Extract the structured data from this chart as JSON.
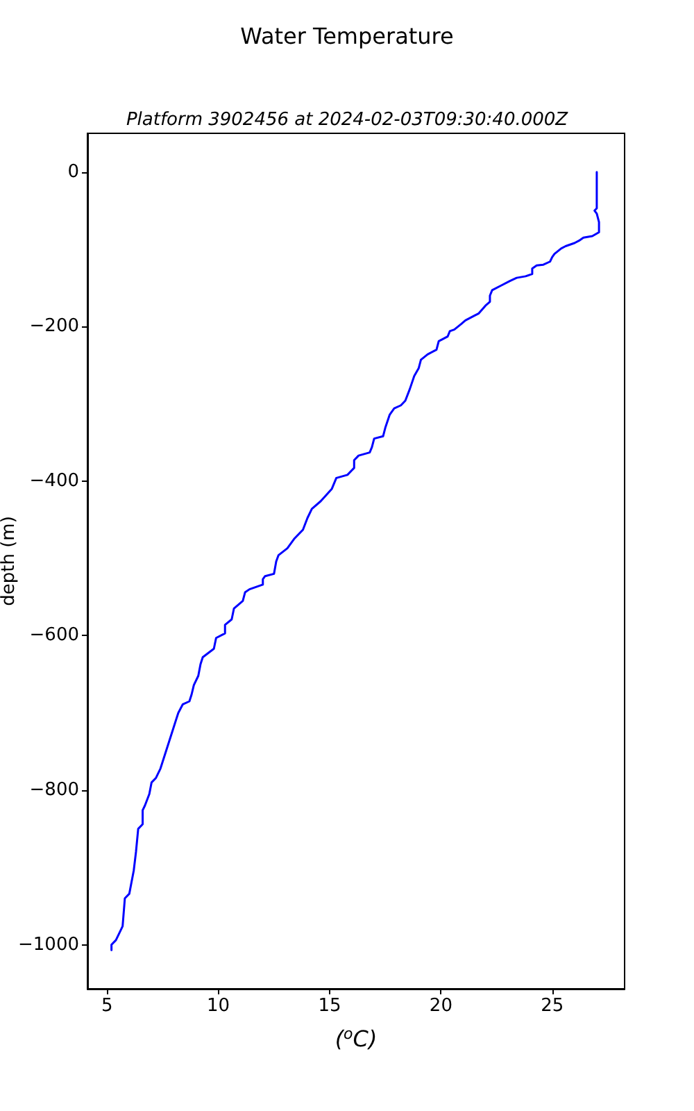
{
  "chart_data": {
    "type": "line",
    "title": "Water Temperature",
    "subtitle": "Platform 3902456 at 2024-02-03T09:30:40.000Z",
    "xlabel": "($^{o}$C)",
    "ylabel": "depth (m)",
    "color": "#0000ff",
    "marker": "none",
    "line_style": "solid",
    "grid": false,
    "x": [
      27.0,
      27.0,
      27.0,
      26.9,
      27.0,
      27.1,
      27.1,
      27.1,
      26.8,
      26.4,
      26.2,
      26.0,
      25.6,
      25.4,
      25.1,
      25.0,
      24.9,
      24.6,
      24.3,
      24.1,
      24.1,
      23.8,
      23.4,
      23.1,
      22.7,
      22.3,
      22.2,
      22.2,
      22.0,
      21.7,
      21.5,
      21.1,
      20.9,
      20.6,
      20.4,
      20.3,
      19.9,
      19.8,
      19.4,
      19.1,
      19.0,
      18.8,
      18.6,
      18.4,
      18.2,
      17.9,
      17.7,
      17.5,
      17.4,
      17.0,
      16.9,
      16.8,
      16.3,
      16.1,
      16.1,
      15.8,
      15.3,
      15.1,
      14.6,
      14.2,
      14.0,
      13.8,
      13.4,
      13.1,
      12.7,
      12.6,
      12.5,
      12.1,
      12.0,
      12.0,
      11.4,
      11.2,
      11.1,
      10.7,
      10.6,
      10.3,
      10.3,
      9.9,
      9.8,
      9.3,
      9.2,
      9.1,
      8.9,
      8.8,
      8.7,
      8.4,
      8.2,
      8.0,
      7.8,
      7.6,
      7.4,
      7.2,
      7.0,
      6.9,
      6.7,
      6.6,
      6.6,
      6.4,
      6.3,
      6.2,
      6.0,
      5.8,
      5.7,
      5.6,
      5.4,
      5.2,
      5.2
    ],
    "values": [
      0,
      -20,
      -47,
      -50,
      -54,
      -65,
      -72,
      -78,
      -83,
      -85,
      -89,
      -92,
      -96,
      -99,
      -106,
      -110,
      -116,
      -120,
      -121,
      -125,
      -132,
      -135,
      -137,
      -141,
      -147,
      -153,
      -160,
      -168,
      -173,
      -183,
      -186,
      -192,
      -197,
      -204,
      -206,
      -213,
      -219,
      -230,
      -236,
      -243,
      -254,
      -264,
      -281,
      -296,
      -302,
      -306,
      -314,
      -331,
      -342,
      -345,
      -356,
      -363,
      -367,
      -373,
      -383,
      -392,
      -396,
      -410,
      -426,
      -436,
      -448,
      -463,
      -475,
      -487,
      -496,
      -504,
      -520,
      -523,
      -527,
      -534,
      -540,
      -544,
      -555,
      -565,
      -579,
      -586,
      -597,
      -603,
      -617,
      -628,
      -637,
      -652,
      -664,
      -676,
      -685,
      -689,
      -700,
      -718,
      -736,
      -754,
      -772,
      -784,
      -790,
      -805,
      -820,
      -826,
      -844,
      -850,
      -880,
      -904,
      -934,
      -940,
      -976,
      -982,
      -994,
      -1000,
      -1007
    ],
    "xlim": [
      4.12,
      28.25
    ],
    "xticks": [
      5,
      10,
      15,
      20,
      25
    ],
    "ylim": [
      -1057,
      50
    ],
    "yticks": [
      -1000,
      -800,
      -600,
      -400,
      -200,
      0
    ]
  }
}
